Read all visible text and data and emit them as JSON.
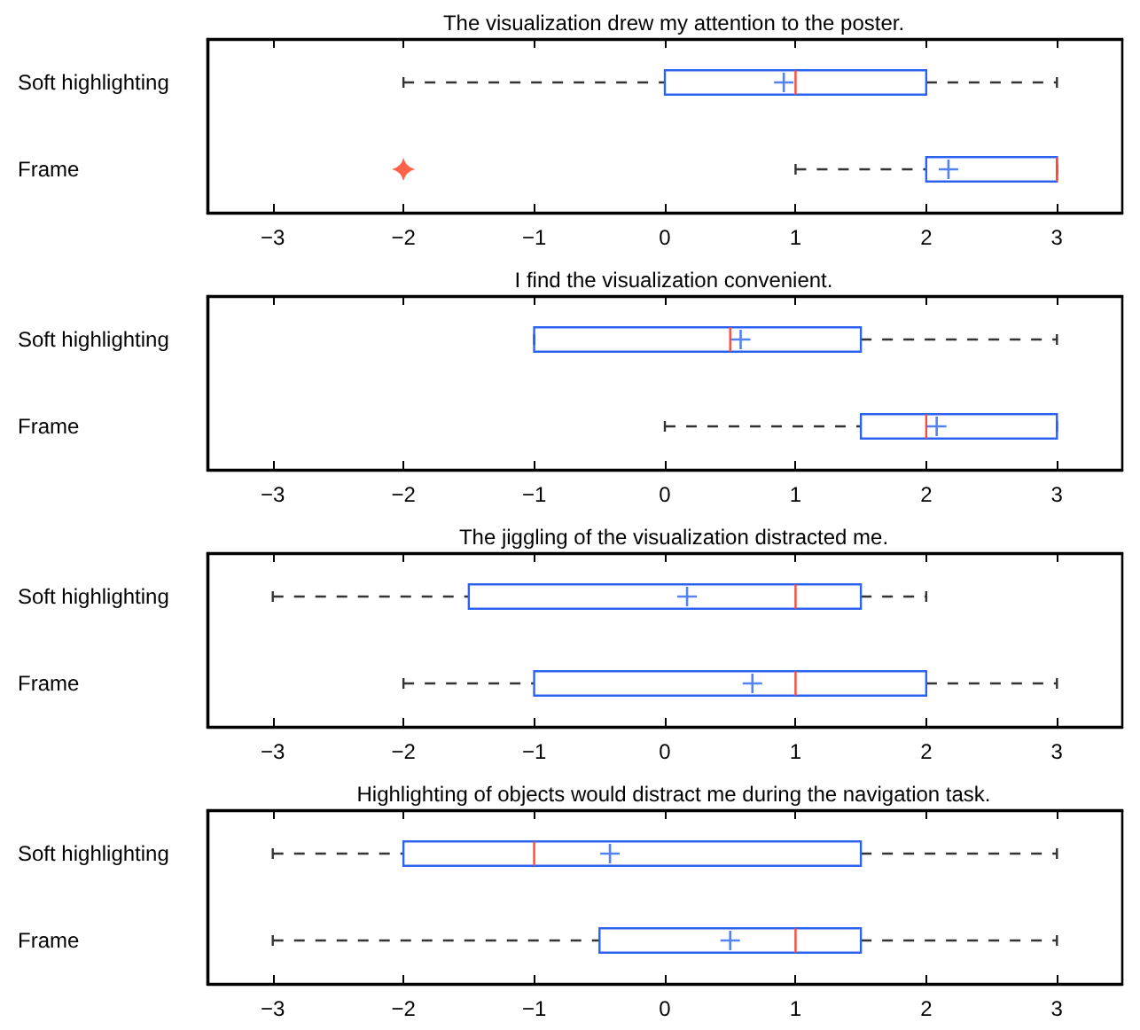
{
  "chart_data": [
    {
      "type": "box",
      "title": "The visualization drew my attention to the poster.",
      "orientation": "horizontal",
      "categories": [
        "Soft highlighting",
        "Frame"
      ],
      "xlim": [
        -3.5,
        3.5
      ],
      "xticks": [
        -3,
        -2,
        -1,
        0,
        1,
        2,
        3
      ],
      "line_style": "dashed",
      "series": [
        {
          "color": "#2b63f0",
          "boxes": [
            {
              "low": -2,
              "q1": 0,
              "median": 1,
              "q3": 2,
              "high": 3,
              "mean": 0.91
            },
            {
              "low": 1,
              "q1": 2,
              "median": 3,
              "q3": 3,
              "high": 3,
              "mean": 2.17,
              "outliers": [
                -2
              ]
            }
          ]
        }
      ]
    },
    {
      "type": "box",
      "title": "I find the visualization convenient.",
      "orientation": "horizontal",
      "categories": [
        "Soft highlighting",
        "Frame"
      ],
      "xlim": [
        -3.5,
        3.5
      ],
      "xticks": [
        -3,
        -2,
        -1,
        0,
        1,
        2,
        3
      ],
      "line_style": "dashed",
      "series": [
        {
          "color": "#2b63f0",
          "boxes": [
            {
              "low": -1,
              "q1": -1,
              "median": 0.5,
              "q3": 1.5,
              "high": 3,
              "mean": 0.58
            },
            {
              "low": 0,
              "q1": 1.5,
              "median": 2,
              "q3": 3,
              "high": 3,
              "mean": 2.08
            }
          ]
        }
      ]
    },
    {
      "type": "box",
      "title": "The jiggling of the visualization distracted me.",
      "orientation": "horizontal",
      "categories": [
        "Soft highlighting",
        "Frame"
      ],
      "xlim": [
        -3.5,
        3.5
      ],
      "xticks": [
        -3,
        -2,
        -1,
        0,
        1,
        2,
        3
      ],
      "line_style": "dashed",
      "series": [
        {
          "color": "#2b63f0",
          "boxes": [
            {
              "low": -3,
              "q1": -1.5,
              "median": 1,
              "q3": 1.5,
              "high": 2,
              "mean": 0.17
            },
            {
              "low": -2,
              "q1": -1,
              "median": 1,
              "q3": 2,
              "high": 3,
              "mean": 0.67
            }
          ]
        }
      ]
    },
    {
      "type": "box",
      "title": "Highlighting of objects would distract me during the navigation task.",
      "orientation": "horizontal",
      "categories": [
        "Soft highlighting",
        "Frame"
      ],
      "xlim": [
        -3.5,
        3.5
      ],
      "xticks": [
        -3,
        -2,
        -1,
        0,
        1,
        2,
        3
      ],
      "line_style": "dashed",
      "series": [
        {
          "color": "#2b63f0",
          "boxes": [
            {
              "low": -3,
              "q1": -2,
              "median": -1,
              "q3": 1.5,
              "high": 3,
              "mean": -0.42
            },
            {
              "low": -3,
              "q1": -0.5,
              "median": 1,
              "q3": 1.5,
              "high": 3,
              "mean": 0.5
            }
          ]
        }
      ]
    }
  ]
}
